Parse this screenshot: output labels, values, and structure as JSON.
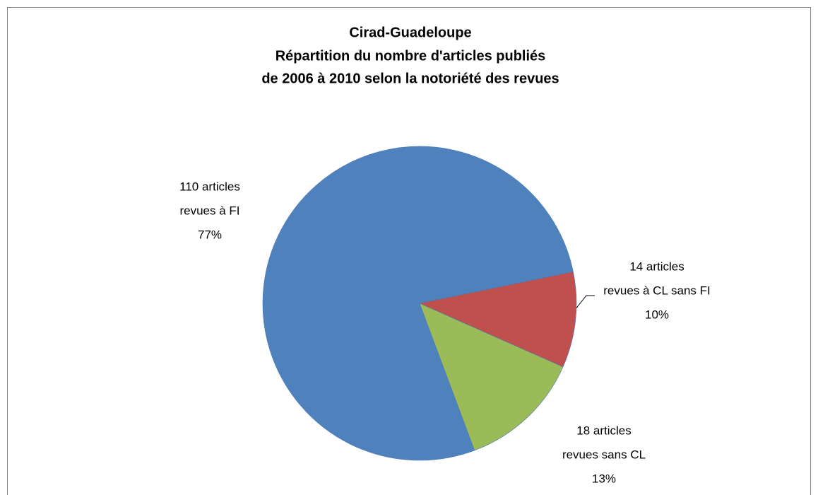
{
  "chart_data": {
    "type": "pie",
    "title": [
      "Cirad-Guadeloupe",
      "Répartition du nombre d'articles publiés",
      "de 2006 à 2010 selon la notoriété des revues"
    ],
    "categories": [
      "revues à FI",
      "revues à CL sans FI",
      "revues sans CL"
    ],
    "values": [
      110,
      14,
      18
    ],
    "value_labels": [
      "110 articles",
      "14 articles",
      "18 articles"
    ],
    "percents": [
      77,
      10,
      13
    ],
    "percent_labels": [
      "77%",
      "10%",
      "13%"
    ],
    "colors": [
      "#4f81bd",
      "#c0504d",
      "#9bbb59"
    ]
  }
}
